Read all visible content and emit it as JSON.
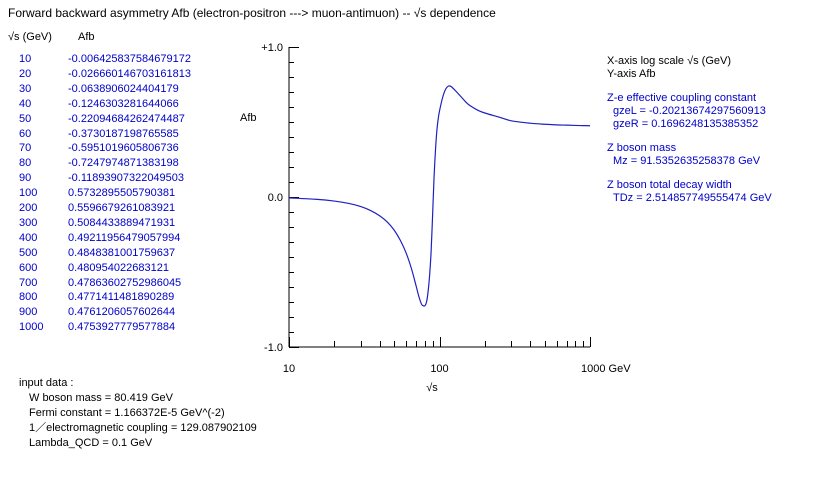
{
  "window": {
    "title": "Forward backward asymmetry  Afb (electron-positron ---> muon-antimuon) -- √s dependence"
  },
  "table": {
    "header_s": "√s  (GeV)",
    "header_afb": "Afb",
    "rows": [
      {
        "s": "10",
        "afb": "-0.006425837584679172"
      },
      {
        "s": "20",
        "afb": "-0.026660146703161813"
      },
      {
        "s": "30",
        "afb": "-0.0638906024404179"
      },
      {
        "s": "40",
        "afb": "-0.1246303281644066"
      },
      {
        "s": "50",
        "afb": "-0.22094684262474487"
      },
      {
        "s": "60",
        "afb": "-0.3730187198765585"
      },
      {
        "s": "70",
        "afb": "-0.5951019605806736"
      },
      {
        "s": "80",
        "afb": "-0.7247974871383198"
      },
      {
        "s": "90",
        "afb": "-0.11893907322049503"
      },
      {
        "s": "100",
        "afb": "0.5732895505790381"
      },
      {
        "s": "200",
        "afb": "0.5596679261083921"
      },
      {
        "s": "300",
        "afb": "0.5084433889471931"
      },
      {
        "s": "400",
        "afb": "0.49211956479057994"
      },
      {
        "s": "500",
        "afb": "0.4848381001759637"
      },
      {
        "s": "600",
        "afb": "0.480954022683121"
      },
      {
        "s": "700",
        "afb": "0.47863602752986045"
      },
      {
        "s": "800",
        "afb": "0.4771411481890289"
      },
      {
        "s": "900",
        "afb": "0.4761206057602644"
      },
      {
        "s": "1000",
        "afb": "0.4753927779577884"
      }
    ]
  },
  "chart_data": {
    "type": "line",
    "ylabel": "Afb",
    "xlabel": "√s",
    "x_scale": "log",
    "xlim": [
      10,
      1000
    ],
    "ylim": [
      -1.0,
      1.0
    ],
    "x_ticklabels": [
      "10",
      "100",
      "1000 GeV"
    ],
    "y_ticklabels": [
      "+1.0",
      "0.0",
      "-1.0"
    ],
    "series": [
      {
        "color": "#2020c0",
        "x": [
          10,
          15,
          20,
          25,
          30,
          35,
          40,
          45,
          50,
          55,
          60,
          65,
          70,
          73,
          76,
          78,
          80,
          82,
          84,
          86,
          88,
          90,
          92,
          94,
          96,
          98,
          100,
          105,
          110,
          115,
          120,
          130,
          140,
          150,
          160,
          180,
          200,
          250,
          300,
          400,
          500,
          600,
          700,
          800,
          900,
          1000
        ],
        "y": [
          -0.006,
          -0.015,
          -0.027,
          -0.043,
          -0.064,
          -0.091,
          -0.125,
          -0.167,
          -0.221,
          -0.29,
          -0.373,
          -0.475,
          -0.595,
          -0.665,
          -0.715,
          -0.725,
          -0.725,
          -0.7,
          -0.63,
          -0.52,
          -0.36,
          -0.119,
          0.13,
          0.31,
          0.44,
          0.52,
          0.573,
          0.665,
          0.72,
          0.74,
          0.735,
          0.7,
          0.665,
          0.632,
          0.608,
          0.578,
          0.56,
          0.532,
          0.508,
          0.492,
          0.485,
          0.481,
          0.479,
          0.477,
          0.476,
          0.475
        ]
      }
    ]
  },
  "info": {
    "xaxis_line": "X-axis log scale  √s (GeV)",
    "yaxis_line": "Y-axis  Afb",
    "coupling_title": "Z-e effective coupling constant",
    "gzeL": "gzeL = -0.20213674297560913",
    "gzeR": "gzeR = 0.1696248135385352",
    "mass_title": "Z boson mass",
    "mz": "Mz = 91.5352635258378 GeV",
    "width_title": "Z boson total decay width",
    "tdz": "TDz = 2.514857749555474 GeV"
  },
  "inputs": {
    "title": "input data :",
    "w_mass": "W boson mass = 80.419 GeV",
    "fermi": "Fermi constant = 1.166372E-5 GeV^(-2)",
    "em_coupling": "1／electromagnetic coupling = 129.087902109",
    "lambda_qcd": "Lambda_QCD = 0.1 GeV"
  }
}
